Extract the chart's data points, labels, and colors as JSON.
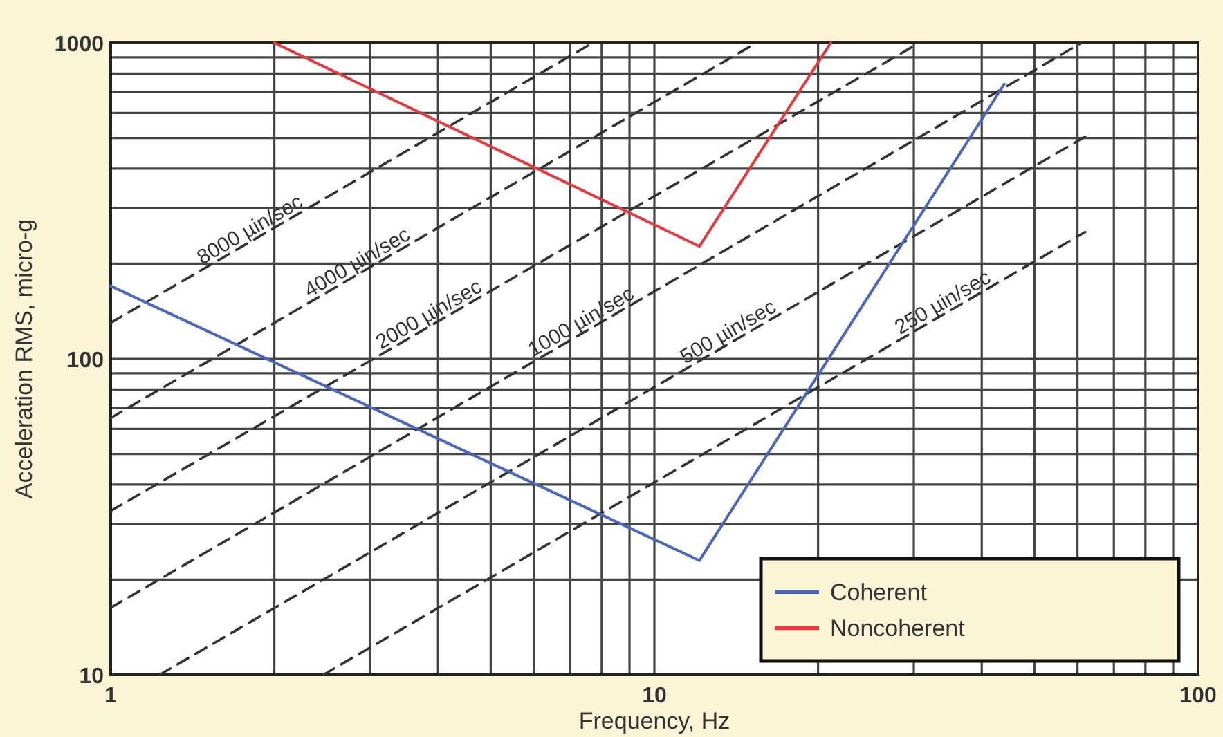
{
  "chart_data": {
    "type": "line",
    "xlabel": "Frequency, Hz",
    "ylabel": "Acceleration RMS, micro-g",
    "log": "xy",
    "grid": true,
    "legend": "bottom right",
    "marker": "none",
    "xlim": [
      1,
      100
    ],
    "xticks": [
      1,
      {
        "value": 2,
        "label": null
      },
      {
        "value": 3,
        "label": null
      },
      {
        "value": 4,
        "label": null
      },
      {
        "value": 5,
        "label": null
      },
      {
        "value": 6,
        "label": null
      },
      {
        "value": 7,
        "label": null
      },
      {
        "value": 8,
        "label": null
      },
      {
        "value": 9,
        "label": null
      },
      10,
      {
        "value": 20,
        "label": null
      },
      {
        "value": 30,
        "label": null
      },
      {
        "value": 40,
        "label": null
      },
      {
        "value": 50,
        "label": null
      },
      {
        "value": 60,
        "label": null
      },
      {
        "value": 70,
        "label": null
      },
      {
        "value": 80,
        "label": null
      },
      {
        "value": 90,
        "label": null
      },
      100
    ],
    "ylim": [
      10,
      1000
    ],
    "yticks": [
      10,
      {
        "value": 20,
        "label": null
      },
      {
        "value": 30,
        "label": null
      },
      {
        "value": 40,
        "label": null
      },
      {
        "value": 50,
        "label": null
      },
      {
        "value": 60,
        "label": null
      },
      {
        "value": 70,
        "label": null
      },
      {
        "value": 80,
        "label": null
      },
      {
        "value": 90,
        "label": null
      },
      100,
      {
        "value": 200,
        "label": null
      },
      {
        "value": 300,
        "label": null
      },
      {
        "value": 400,
        "label": null
      },
      {
        "value": 500,
        "label": null
      },
      {
        "value": 600,
        "label": null
      },
      {
        "value": 700,
        "label": null
      },
      {
        "value": 800,
        "label": null
      },
      {
        "value": 900,
        "label": null
      },
      1000
    ],
    "series": [
      {
        "name": "8000 µin/sec",
        "color": "#333333",
        "line_style": "dashed",
        "x": [
          1,
          7.7
        ],
        "values": [
          130,
          1000
        ]
      },
      {
        "name": "4000 µin/sec",
        "color": "#333333",
        "line_style": "dashed",
        "x": [
          1,
          15.4
        ],
        "values": [
          65,
          1000
        ]
      },
      {
        "name": "2000 µin/sec",
        "color": "#333333",
        "line_style": "dashed",
        "x": [
          1,
          30.7
        ],
        "values": [
          33,
          1000
        ]
      },
      {
        "name": "1000 µin/sec",
        "color": "#333333",
        "line_style": "dashed",
        "x": [
          1,
          61
        ],
        "values": [
          16.3,
          1000
        ]
      },
      {
        "name": "500 µin/sec",
        "color": "#333333",
        "line_style": "dashed",
        "x": [
          1.23,
          62
        ],
        "values": [
          10,
          505
        ]
      },
      {
        "name": "250 µin/sec",
        "color": "#333333",
        "line_style": "dashed",
        "x": [
          2.46,
          62
        ],
        "values": [
          10,
          252
        ]
      },
      {
        "name": "Coherent",
        "color": "#4a67bd",
        "line_style": "solid",
        "x": [
          1,
          12.1,
          44
        ],
        "values": [
          170,
          23,
          740
        ]
      },
      {
        "name": "Noncoherent",
        "color": "#e8383d",
        "line_style": "solid",
        "x": [
          2,
          12.1,
          21.1
        ],
        "values": [
          1000,
          227,
          1000
        ]
      }
    ]
  }
}
